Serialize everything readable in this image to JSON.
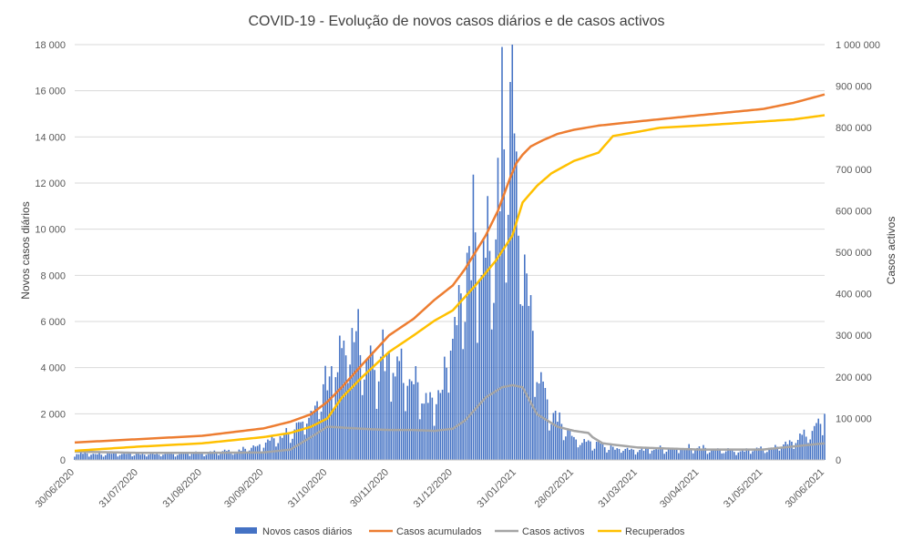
{
  "chart_data": {
    "type": "bar+line",
    "title": "COVID-19 - Evolução de novos casos diários e de casos activos",
    "y_left_label": "Novos casos diários",
    "y_right_label": "Casos activos",
    "y_left_range": [
      0,
      18000
    ],
    "y_right_range": [
      0,
      1000000
    ],
    "y_left_ticks": [
      "0",
      "2 000",
      "4 000",
      "6 000",
      "8 000",
      "10 000",
      "12 000",
      "14 000",
      "16 000",
      "18 000"
    ],
    "y_right_ticks": [
      "0",
      "100 000",
      "200 000",
      "300 000",
      "400 000",
      "500 000",
      "600 000",
      "700 000",
      "800 000",
      "900 000",
      "1 000 000"
    ],
    "x_range": [
      "30/06/2020",
      "30/06/2021"
    ],
    "x_tick_labels": [
      "30/06/2020",
      "31/07/2020",
      "31/08/2020",
      "30/09/2020",
      "31/10/2020",
      "30/11/2020",
      "31/12/2020",
      "31/01/2021",
      "28/02/2021",
      "31/03/2021",
      "30/04/2021",
      "31/05/2021",
      "30/06/2021"
    ],
    "x_tick_days": [
      0,
      31,
      62,
      92,
      123,
      153,
      184,
      215,
      243,
      274,
      304,
      335,
      365
    ],
    "gridlines": true,
    "legend_position": "bottom",
    "series": [
      {
        "name": "Novos casos diários",
        "type": "bar",
        "axis": "left",
        "color": "#4472c4",
        "anchor_days": [
          0,
          30,
          60,
          80,
          92,
          105,
          115,
          120,
          125,
          130,
          135,
          140,
          145,
          150,
          155,
          160,
          165,
          170,
          175,
          180,
          184,
          188,
          192,
          195,
          200,
          205,
          208,
          211,
          213,
          215,
          218,
          222,
          226,
          230,
          235,
          243,
          255,
          265,
          274,
          285,
          295,
          304,
          315,
          325,
          335,
          345,
          352,
          358,
          362,
          365
        ],
        "anchor_values": [
          300,
          250,
          320,
          400,
          700,
          1200,
          2000,
          3000,
          4000,
          5000,
          5500,
          5200,
          4500,
          4800,
          4500,
          4000,
          3500,
          3000,
          2800,
          3500,
          6500,
          7500,
          9000,
          10000,
          9000,
          10500,
          14000,
          15500,
          16000,
          13000,
          10000,
          6000,
          4000,
          2500,
          1800,
          1000,
          700,
          500,
          450,
          500,
          550,
          550,
          450,
          400,
          500,
          700,
          1000,
          1300,
          1600,
          2400
        ]
      },
      {
        "name": "Casos acumulados",
        "type": "line",
        "axis": "right",
        "color": "#ed7d31",
        "anchor_days": [
          0,
          31,
          62,
          92,
          105,
          115,
          123,
          130,
          140,
          153,
          165,
          175,
          184,
          190,
          200,
          206,
          212,
          215,
          218,
          222,
          228,
          235,
          243,
          255,
          274,
          304,
          335,
          350,
          365
        ],
        "anchor_values": [
          42000,
          50000,
          58000,
          76000,
          92000,
          110000,
          140000,
          175000,
          230000,
          300000,
          340000,
          385000,
          420000,
          460000,
          540000,
          600000,
          680000,
          715000,
          735000,
          755000,
          770000,
          785000,
          795000,
          805000,
          815000,
          830000,
          845000,
          860000,
          880000
        ]
      },
      {
        "name": "Casos activos",
        "type": "line",
        "axis": "right",
        "color": "#a5a5a5",
        "anchor_days": [
          0,
          31,
          62,
          92,
          105,
          115,
          123,
          130,
          140,
          153,
          165,
          175,
          184,
          190,
          200,
          208,
          213,
          218,
          225,
          235,
          243,
          250,
          252,
          257,
          265,
          274,
          285,
          304,
          335,
          365
        ],
        "anchor_values": [
          20000,
          17000,
          17000,
          18000,
          25000,
          55000,
          80000,
          78000,
          75000,
          72000,
          72000,
          70000,
          75000,
          95000,
          150000,
          175000,
          180000,
          175000,
          110000,
          80000,
          70000,
          65000,
          55000,
          40000,
          35000,
          30000,
          28000,
          25000,
          25000,
          40000
        ]
      },
      {
        "name": "Recuperados",
        "type": "line",
        "axis": "right",
        "color": "#ffc000",
        "anchor_days": [
          0,
          31,
          62,
          92,
          105,
          115,
          123,
          130,
          140,
          153,
          165,
          175,
          184,
          195,
          205,
          213,
          218,
          225,
          232,
          243,
          255,
          262,
          268,
          274,
          285,
          304,
          335,
          350,
          365
        ],
        "anchor_values": [
          22000,
          32000,
          40000,
          55000,
          65000,
          80000,
          100000,
          150000,
          200000,
          260000,
          300000,
          335000,
          360000,
          420000,
          480000,
          540000,
          620000,
          660000,
          690000,
          720000,
          740000,
          780000,
          785000,
          790000,
          800000,
          805000,
          815000,
          820000,
          830000
        ]
      }
    ]
  }
}
